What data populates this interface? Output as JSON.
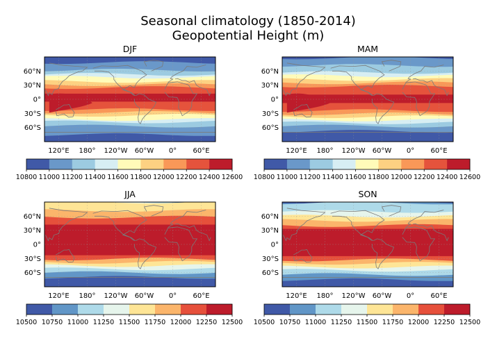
{
  "title_line1": "Seasonal climatology  (1850-2014)",
  "title_line2": "Geopotential Height (m)",
  "chart_data": [
    {
      "type": "heatmap",
      "title": "DJF",
      "x_ticks": [
        "120°E",
        "180°",
        "120°W",
        "60°W",
        "0°",
        "60°E"
      ],
      "y_ticks": [
        "60°N",
        "30°N",
        "0°",
        "30°S",
        "60°S"
      ],
      "levels": [
        10800,
        11000,
        11200,
        11400,
        11600,
        11800,
        12000,
        12200,
        12400,
        12600
      ],
      "colorbar_labels": [
        "10800",
        "11000",
        "11200",
        "11400",
        "11600",
        "11800",
        "12000",
        "12200",
        "12400",
        "12600"
      ],
      "colors": [
        "#4059a7",
        "#6a98c9",
        "#9ccbe1",
        "#d7eef3",
        "#fffbb9",
        "#fdd182",
        "#f99858",
        "#e5533c",
        "#bd1c2b"
      ],
      "band_top_latitudes": [
        90,
        78,
        62,
        53,
        47,
        38,
        31,
        25,
        12
      ],
      "band_bottom_latitudes": [
        -90,
        -75,
        -57,
        -48,
        -43,
        -34,
        -28,
        -22,
        -5
      ]
    },
    {
      "type": "heatmap",
      "title": "MAM",
      "x_ticks": [
        "120°E",
        "180°",
        "120°W",
        "60°W",
        "0°",
        "60°E"
      ],
      "y_ticks": [
        "60°N",
        "30°N",
        "0°",
        "30°S",
        "60°S"
      ],
      "levels": [
        10800,
        11000,
        11200,
        11400,
        11600,
        11800,
        12000,
        12200,
        12400,
        12600
      ],
      "colorbar_labels": [
        "10800",
        "11000",
        "11200",
        "11400",
        "11600",
        "11800",
        "12000",
        "12200",
        "12400",
        "12600"
      ],
      "colors": [
        "#4059a7",
        "#6a98c9",
        "#9ccbe1",
        "#d7eef3",
        "#fffbb9",
        "#fdd182",
        "#f99858",
        "#e5533c",
        "#bd1c2b"
      ],
      "band_top_latitudes": [
        90,
        88,
        72,
        57,
        50,
        42,
        35,
        28,
        10
      ],
      "band_bottom_latitudes": [
        -90,
        -68,
        -57,
        -50,
        -44,
        -37,
        -31,
        -24,
        -8
      ]
    },
    {
      "type": "heatmap",
      "title": "JJA",
      "x_ticks": [
        "120°E",
        "180°",
        "120°W",
        "60°W",
        "0°",
        "60°E"
      ],
      "y_ticks": [
        "60°N",
        "30°N",
        "0°",
        "30°S",
        "60°S"
      ],
      "levels": [
        10500,
        10750,
        11000,
        11250,
        11500,
        11750,
        12000,
        12250,
        12500
      ],
      "colorbar_labels": [
        "10500",
        "10750",
        "11000",
        "11250",
        "11500",
        "11750",
        "12000",
        "12250",
        "12500"
      ],
      "colors": [
        "#4059a7",
        "#6196c7",
        "#aedae9",
        "#e6f5ec",
        "#fee596",
        "#fbb56b",
        "#e6503b",
        "#bd1c2b"
      ],
      "band_top_latitudes": [
        90,
        90,
        90,
        90,
        90,
        72,
        58,
        42
      ],
      "band_bottom_latitudes": [
        -90,
        -70,
        -60,
        -52,
        -45,
        -38,
        -31,
        -23
      ]
    },
    {
      "type": "heatmap",
      "title": "SON",
      "x_ticks": [
        "120°E",
        "180°",
        "120°W",
        "60°W",
        "0°",
        "60°E"
      ],
      "y_ticks": [
        "60°N",
        "30°N",
        "0°",
        "30°S",
        "60°S"
      ],
      "levels": [
        10500,
        10750,
        11000,
        11250,
        11500,
        11750,
        12000,
        12250,
        12500
      ],
      "colorbar_labels": [
        "10500",
        "10750",
        "11000",
        "11250",
        "11500",
        "11750",
        "12000",
        "12250",
        "12500"
      ],
      "colors": [
        "#4059a7",
        "#6196c7",
        "#aedae9",
        "#e6f5ec",
        "#fee596",
        "#fbb56b",
        "#e6503b",
        "#bd1c2b"
      ],
      "band_top_latitudes": [
        90,
        90,
        88,
        70,
        60,
        51,
        40,
        33
      ],
      "band_bottom_latitudes": [
        -90,
        -75,
        -64,
        -55,
        -48,
        -40,
        -33,
        -25
      ]
    }
  ]
}
